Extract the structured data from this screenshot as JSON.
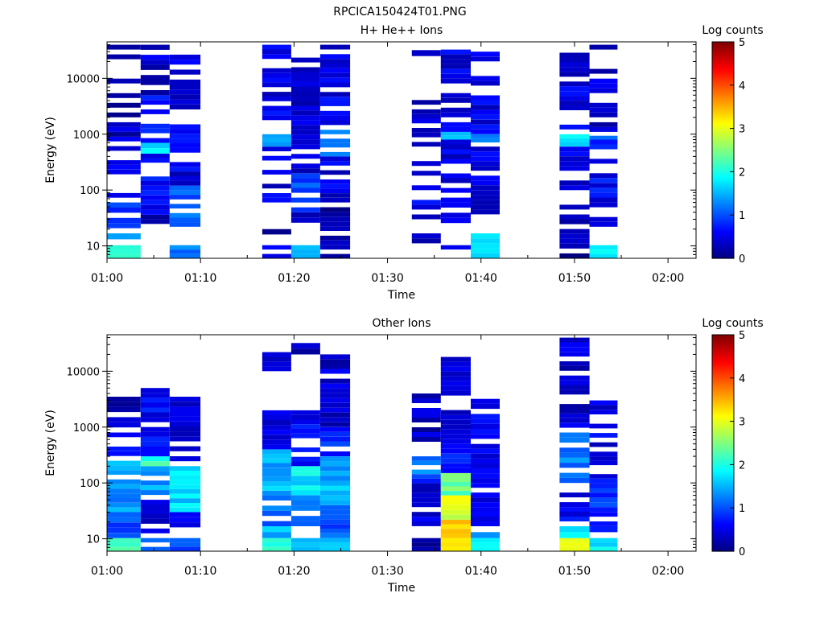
{
  "page_title": "RPCICA150424T01.PNG",
  "chart_data": [
    {
      "type": "heatmap",
      "title": "H+ He++ Ions",
      "xlabel": "Time",
      "ylabel": "Energy (eV)",
      "yscale": "log",
      "ylim": [
        6,
        45000
      ],
      "x_ticks": [
        "01:00",
        "01:10",
        "01:20",
        "01:30",
        "01:40",
        "01:50",
        "02:00"
      ],
      "x_tick_minutes": [
        0,
        10,
        20,
        30,
        40,
        50,
        60
      ],
      "xlim_minutes": [
        0,
        63
      ],
      "y_ticks": [
        10,
        100,
        1000,
        10000
      ],
      "y_tick_labels": [
        "10",
        "100",
        "1000",
        "10000"
      ],
      "colorbar": {
        "label": "Log counts",
        "min": 0,
        "max": 5,
        "ticks": [
          "0",
          "1",
          "2",
          "3",
          "4",
          "5"
        ]
      },
      "columns": [
        {
          "t0": 0.0,
          "t1": 3.6,
          "fill": 0.55,
          "seed": 11,
          "cells": [
            [
              6.0,
              10.3,
              2.2
            ],
            [
              10.3,
              16.8,
              1.3
            ],
            [
              16.8,
              60,
              0.9
            ],
            [
              60,
              900,
              0.6
            ],
            [
              900,
              40000,
              0.3
            ]
          ]
        },
        {
          "t0": 3.6,
          "t1": 6.7,
          "fill": 0.6,
          "seed": 23,
          "cells": [
            [
              17,
              36,
              0.2
            ],
            [
              36,
              120,
              0.6
            ],
            [
              120,
              450,
              0.7
            ],
            [
              450,
              700,
              1.7
            ],
            [
              700,
              5000,
              0.8
            ],
            [
              5000,
              40000,
              0.4
            ]
          ]
        },
        {
          "t0": 6.7,
          "t1": 10.0,
          "fill": 0.6,
          "seed": 37,
          "cells": [
            [
              6.0,
              10.3,
              1.3
            ],
            [
              22,
              120,
              1.1
            ],
            [
              120,
              1500,
              0.5
            ],
            [
              1500,
              40000,
              0.4
            ]
          ]
        },
        {
          "t0": 16.6,
          "t1": 19.7,
          "fill": 0.65,
          "seed": 41,
          "cells": [
            [
              6.0,
              10.3,
              0.4
            ],
            [
              16,
              20,
              0.3
            ],
            [
              60,
              600,
              0.5
            ],
            [
              600,
              1000,
              1.4
            ],
            [
              1000,
              40000,
              0.5
            ]
          ]
        },
        {
          "t0": 19.7,
          "t1": 22.8,
          "fill": 0.6,
          "seed": 53,
          "cells": [
            [
              6.0,
              10.3,
              1.7
            ],
            [
              10.3,
              16.8,
              1.2
            ],
            [
              16.8,
              40,
              0.4
            ],
            [
              40,
              200,
              1.0
            ],
            [
              200,
              35000,
              0.4
            ]
          ]
        },
        {
          "t0": 22.8,
          "t1": 26.0,
          "fill": 0.6,
          "seed": 67,
          "cells": [
            [
              6.0,
              10.3,
              0.4
            ],
            [
              10.3,
              60,
              0.2
            ],
            [
              60,
              400,
              0.5
            ],
            [
              400,
              1200,
              1.4
            ],
            [
              1200,
              40000,
              0.5
            ]
          ]
        },
        {
          "t0": 32.6,
          "t1": 35.7,
          "fill": 0.55,
          "seed": 71,
          "cells": [
            [
              6.0,
              16.8,
              0.3
            ],
            [
              30,
              600,
              0.5
            ],
            [
              600,
              6000,
              0.4
            ],
            [
              25000,
              32000,
              0.4
            ]
          ]
        },
        {
          "t0": 35.7,
          "t1": 38.9,
          "fill": 0.65,
          "seed": 83,
          "cells": [
            [
              6.0,
              10.3,
              0.4
            ],
            [
              10.3,
              16.8,
              1.0
            ],
            [
              16.8,
              60,
              0.5
            ],
            [
              60,
              800,
              0.5
            ],
            [
              800,
              1100,
              1.6
            ],
            [
              1100,
              40000,
              0.5
            ]
          ]
        },
        {
          "t0": 38.9,
          "t1": 42.0,
          "fill": 0.6,
          "seed": 97,
          "cells": [
            [
              6.0,
              16.8,
              1.9
            ],
            [
              30,
              600,
              0.5
            ],
            [
              600,
              1000,
              1.2
            ],
            [
              1000,
              30000,
              0.5
            ]
          ]
        },
        {
          "t0": 48.4,
          "t1": 51.6,
          "fill": 0.65,
          "seed": 101,
          "cells": [
            [
              6.0,
              30,
              0.2
            ],
            [
              30,
              600,
              0.5
            ],
            [
              600,
              1000,
              1.8
            ],
            [
              1000,
              35000,
              0.5
            ]
          ]
        },
        {
          "t0": 51.6,
          "t1": 54.6,
          "fill": 0.6,
          "seed": 113,
          "cells": [
            [
              6.0,
              10.3,
              1.9
            ],
            [
              10.3,
              16.8,
              1.2
            ],
            [
              22,
              200,
              0.6
            ],
            [
              200,
              800,
              0.6
            ],
            [
              800,
              1100,
              1.4
            ],
            [
              1100,
              40000,
              0.4
            ]
          ]
        }
      ]
    },
    {
      "type": "heatmap",
      "title": "Other Ions",
      "xlabel": "Time",
      "ylabel": "Energy (eV)",
      "yscale": "log",
      "ylim": [
        6,
        45000
      ],
      "x_ticks": [
        "01:00",
        "01:10",
        "01:20",
        "01:30",
        "01:40",
        "01:50",
        "02:00"
      ],
      "x_tick_minutes": [
        0,
        10,
        20,
        30,
        40,
        50,
        60
      ],
      "xlim_minutes": [
        0,
        63
      ],
      "y_ticks": [
        10,
        100,
        1000,
        10000
      ],
      "y_tick_labels": [
        "10",
        "100",
        "1000",
        "10000"
      ],
      "colorbar": {
        "label": "Log counts",
        "min": 0,
        "max": 5,
        "ticks": [
          "0",
          "1",
          "2",
          "3",
          "4",
          "5"
        ]
      },
      "columns": [
        {
          "t0": 0.0,
          "t1": 3.6,
          "fill": 0.75,
          "seed": 131,
          "cells": [
            [
              6.0,
              10.3,
              2.3
            ],
            [
              10.3,
              30,
              1.0
            ],
            [
              30,
              250,
              1.4
            ],
            [
              250,
              800,
              0.6
            ],
            [
              800,
              3500,
              0.3
            ]
          ]
        },
        {
          "t0": 3.6,
          "t1": 6.7,
          "fill": 0.8,
          "seed": 149,
          "cells": [
            [
              6.0,
              10.3,
              1.0
            ],
            [
              10.3,
              50,
              0.5
            ],
            [
              50,
              200,
              1.4
            ],
            [
              200,
              300,
              2.1
            ],
            [
              300,
              5000,
              0.6
            ]
          ]
        },
        {
          "t0": 6.7,
          "t1": 10.0,
          "fill": 0.75,
          "seed": 157,
          "cells": [
            [
              6.0,
              10.3,
              1.1
            ],
            [
              13,
              30,
              0.6
            ],
            [
              30,
              200,
              1.7
            ],
            [
              200,
              3500,
              0.5
            ]
          ]
        },
        {
          "t0": 16.6,
          "t1": 19.7,
          "fill": 0.8,
          "seed": 163,
          "cells": [
            [
              6.0,
              10.3,
              2.2
            ],
            [
              10.3,
              16.8,
              1.6
            ],
            [
              16.8,
              60,
              1.1
            ],
            [
              60,
              400,
              1.5
            ],
            [
              400,
              2000,
              0.5
            ],
            [
              10000,
              22000,
              0.3
            ]
          ]
        },
        {
          "t0": 19.7,
          "t1": 22.8,
          "fill": 0.8,
          "seed": 179,
          "cells": [
            [
              6.0,
              10.3,
              1.6
            ],
            [
              16.8,
              60,
              1.2
            ],
            [
              60,
              200,
              1.8
            ],
            [
              200,
              2000,
              0.6
            ],
            [
              20000,
              32000,
              0.3
            ]
          ]
        },
        {
          "t0": 22.8,
          "t1": 26.0,
          "fill": 0.8,
          "seed": 191,
          "cells": [
            [
              6.0,
              10.3,
              1.6
            ],
            [
              10.3,
              40,
              1.0
            ],
            [
              40,
              300,
              1.5
            ],
            [
              300,
              1000,
              0.8
            ],
            [
              1000,
              20000,
              0.4
            ]
          ]
        },
        {
          "t0": 32.6,
          "t1": 35.7,
          "fill": 0.75,
          "seed": 199,
          "cells": [
            [
              6.0,
              10.3,
              0.3
            ],
            [
              16.8,
              120,
              0.5
            ],
            [
              120,
              300,
              1.2
            ],
            [
              300,
              4000,
              0.3
            ]
          ]
        },
        {
          "t0": 35.7,
          "t1": 38.9,
          "fill": 0.85,
          "seed": 211,
          "cells": [
            [
              6.0,
              10.3,
              3.3
            ],
            [
              10.3,
              22,
              3.5
            ],
            [
              22,
              60,
              2.9
            ],
            [
              60,
              150,
              2.4
            ],
            [
              150,
              500,
              0.7
            ],
            [
              500,
              18000,
              0.4
            ]
          ]
        },
        {
          "t0": 38.9,
          "t1": 42.0,
          "fill": 0.8,
          "seed": 223,
          "cells": [
            [
              6.0,
              10.3,
              1.9
            ],
            [
              10.3,
              16.8,
              1.4
            ],
            [
              16.8,
              100,
              0.4
            ],
            [
              100,
              500,
              0.6
            ],
            [
              500,
              3200,
              0.5
            ]
          ]
        },
        {
          "t0": 48.4,
          "t1": 51.6,
          "fill": 0.75,
          "seed": 233,
          "cells": [
            [
              6.0,
              10.3,
              3.1
            ],
            [
              10.3,
              16.8,
              1.8
            ],
            [
              16.8,
              100,
              0.6
            ],
            [
              100,
              800,
              1.2
            ],
            [
              800,
              40000,
              0.4
            ]
          ]
        },
        {
          "t0": 51.6,
          "t1": 54.6,
          "fill": 0.75,
          "seed": 241,
          "cells": [
            [
              6.0,
              10.3,
              1.8
            ],
            [
              10.3,
              16.8,
              1.0
            ],
            [
              16.8,
              120,
              0.8
            ],
            [
              120,
              300,
              0.4
            ],
            [
              300,
              3000,
              0.5
            ]
          ]
        }
      ]
    }
  ]
}
